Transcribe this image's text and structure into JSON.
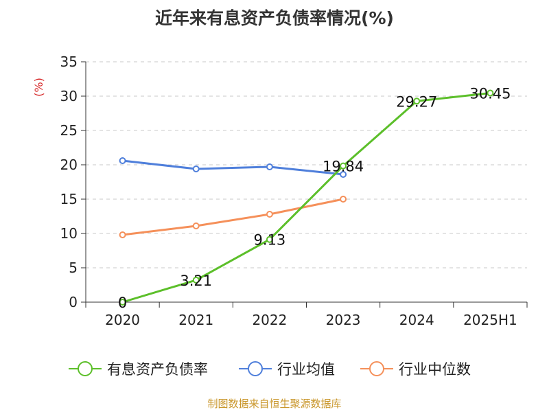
{
  "chart_data": {
    "type": "line",
    "title": "近年来有息资产负债率情况(%)",
    "ylabel": "(%)",
    "xlabel": "",
    "categories": [
      "2020",
      "2021",
      "2022",
      "2023",
      "2024",
      "2025H1"
    ],
    "ylim": [
      0,
      35
    ],
    "yticks": [
      0,
      5,
      10,
      15,
      20,
      25,
      30,
      35
    ],
    "grid": "horizontal-dashed",
    "legend_position": "bottom",
    "series": [
      {
        "name": "有息资产负债率",
        "color": "#5cbf2a",
        "values": [
          0,
          3.21,
          9.13,
          19.84,
          29.27,
          30.45
        ],
        "labels": [
          "0",
          "3.21",
          "9.13",
          "19.84",
          "29.27",
          "30.45"
        ]
      },
      {
        "name": "行业均值",
        "color": "#4f7fdb",
        "values": [
          20.6,
          19.4,
          19.7,
          18.6,
          null,
          null
        ]
      },
      {
        "name": "行业中位数",
        "color": "#f5905a",
        "values": [
          9.8,
          11.1,
          12.8,
          15.0,
          null,
          null
        ]
      }
    ]
  },
  "footer": {
    "source": "制图数据来自恒生聚源数据库"
  }
}
